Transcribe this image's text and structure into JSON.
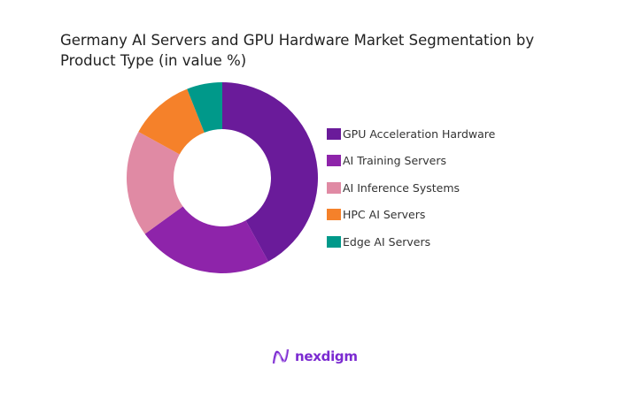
{
  "chart_data": {
    "type": "pie",
    "variant": "donut",
    "title": "Germany AI Servers and GPU Hardware Market Segmentation by Product Type (in value %)",
    "categories": [
      "GPU Acceleration Hardware",
      "AI Training Servers",
      "AI Inference Systems",
      "HPC AI Servers",
      "Edge AI Servers"
    ],
    "values": [
      42,
      23,
      18,
      11,
      6
    ],
    "unit": "%",
    "colors": [
      "#6a1b9a",
      "#8e24aa",
      "#e08aa4",
      "#f5812a",
      "#00998a"
    ],
    "legend_placement": "right"
  },
  "brand": {
    "name": "nexdigm",
    "color": "#7b2ad1"
  }
}
